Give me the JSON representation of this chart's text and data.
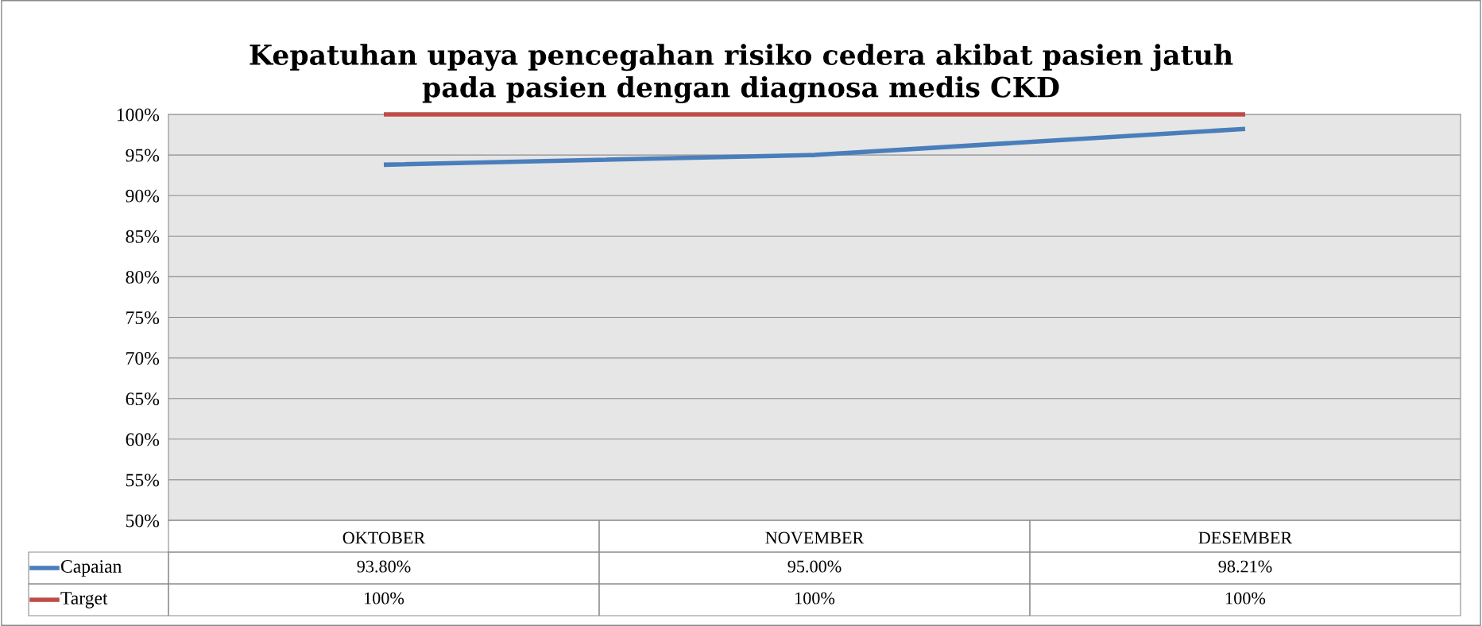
{
  "chart_data": {
    "type": "line",
    "title": "Kepatuhan upaya pencegahan risiko cedera akibat pasien jatuh\npada pasien dengan diagnosa medis CKD",
    "categories": [
      "OKTOBER",
      "NOVEMBER",
      "DESEMBER"
    ],
    "series": [
      {
        "name": "Capaian",
        "color": "#4a7ebb",
        "values": [
          93.8,
          95.0,
          98.21
        ],
        "value_labels": [
          "93.80%",
          "95.00%",
          "98.21%"
        ]
      },
      {
        "name": "Target",
        "color": "#be4b48",
        "values": [
          100,
          100,
          100
        ],
        "value_labels": [
          "100%",
          "100%",
          "100%"
        ]
      }
    ],
    "ylim": [
      50,
      100
    ],
    "yticks": [
      {
        "value": 50,
        "label": "50%"
      },
      {
        "value": 55,
        "label": "55%"
      },
      {
        "value": 60,
        "label": "60%"
      },
      {
        "value": 65,
        "label": "65%"
      },
      {
        "value": 70,
        "label": "70%"
      },
      {
        "value": 75,
        "label": "75%"
      },
      {
        "value": 80,
        "label": "80%"
      },
      {
        "value": 85,
        "label": "85%"
      },
      {
        "value": 90,
        "label": "90%"
      },
      {
        "value": 95,
        "label": "95%"
      },
      {
        "value": 100,
        "label": "100%"
      }
    ],
    "grid": "y",
    "legend": "bottom",
    "marker": "none"
  }
}
